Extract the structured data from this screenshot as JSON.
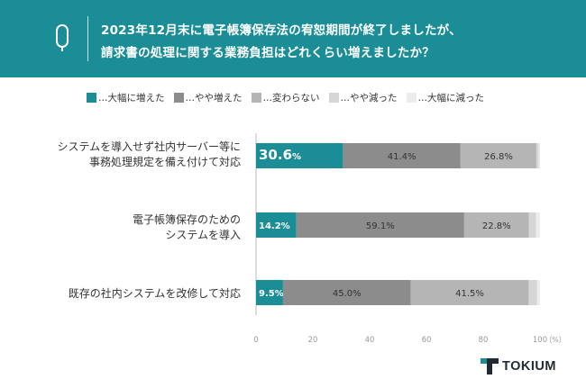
{
  "header": {
    "title_line1": "2023年12月末に電子帳簿保存法の宥恕期間が終了しましたが、",
    "title_line2": "請求書の処理に関する業務負担はどれくらい増えましたか？"
  },
  "colors": {
    "header_bg": "#1a8d96",
    "series": [
      "#1a8d96",
      "#8c8c8c",
      "#b5b5b5",
      "#d6d6d6",
      "#ececec"
    ]
  },
  "icons": {
    "header": "question-mark-icon",
    "logo": "tokium-logo-icon"
  },
  "chart_data": {
    "type": "bar",
    "orientation": "horizontal",
    "stacked": true,
    "categories": [
      "システムを導入せず社内サーバー等に\n事務処理規定を備え付けて対応",
      "電子帳簿保存のための\nシステムを導入",
      "既存の社内システムを改修して対応"
    ],
    "series": [
      {
        "name": "…大幅に増えた",
        "values": [
          30.6,
          14.2,
          9.5
        ],
        "labels": [
          "30.6%",
          "14.2%",
          "9.5%"
        ]
      },
      {
        "name": "…やや増えた",
        "values": [
          41.4,
          59.1,
          45.0
        ],
        "labels": [
          "41.4%",
          "59.1%",
          "45.0%"
        ]
      },
      {
        "name": "…変わらない",
        "values": [
          26.8,
          22.8,
          41.5
        ],
        "labels": [
          "26.8%",
          "22.8%",
          "41.5%"
        ]
      },
      {
        "name": "…やや減った",
        "values": [
          0.8,
          2.5,
          3.0
        ],
        "labels": [
          "",
          "",
          ""
        ]
      },
      {
        "name": "…大幅に減った",
        "values": [
          0.4,
          1.4,
          1.0
        ],
        "labels": [
          "",
          "",
          ""
        ]
      }
    ],
    "xlim": [
      0,
      100
    ],
    "xticks": [
      "0",
      "20",
      "40",
      "60",
      "80",
      "100"
    ],
    "x_unit": "（%）",
    "grid": false,
    "legend_position": "top"
  },
  "logo_text": "TOKIUM"
}
